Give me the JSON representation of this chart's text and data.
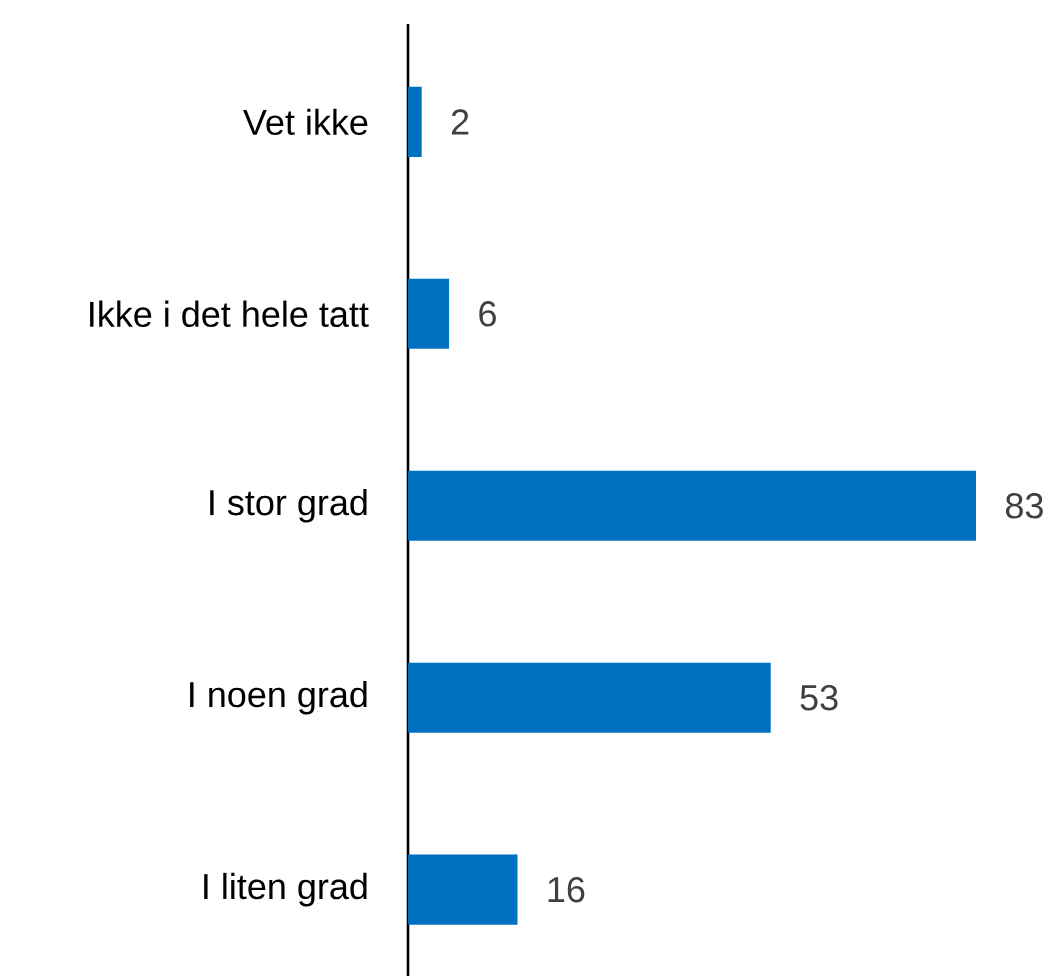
{
  "chart_data": {
    "type": "bar",
    "orientation": "horizontal",
    "categories": [
      "Vet ikke",
      "Ikke i det hele tatt",
      "I stor grad",
      "I noen grad",
      "I liten grad"
    ],
    "values": [
      2,
      6,
      83,
      53,
      16
    ],
    "color": "#0070c0",
    "data_labels": true
  }
}
